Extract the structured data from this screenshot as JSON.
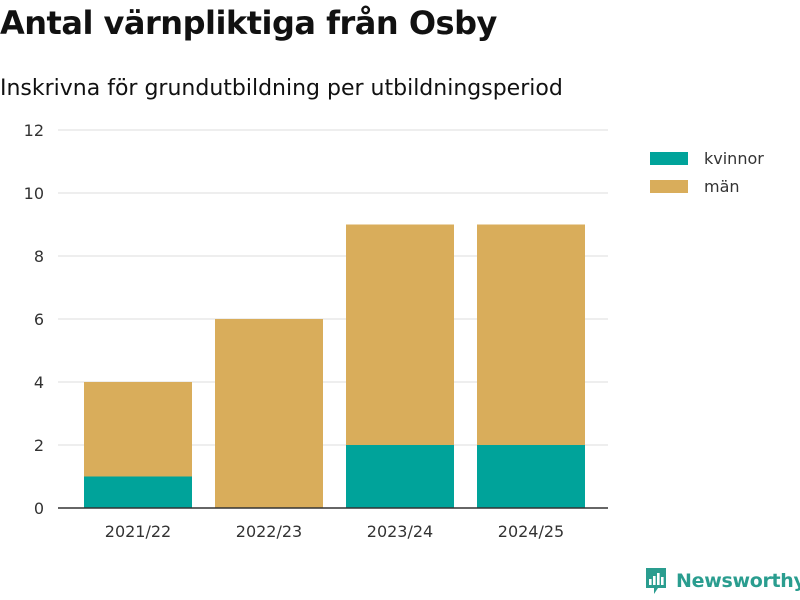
{
  "header": {
    "title": "Antal värnpliktiga från Osby",
    "subtitle": "Inskrivna för grundutbildning per utbildningsperiod"
  },
  "brand": {
    "name": "Newsworthy",
    "icon": "newsworthy-logo-icon",
    "color": "#2a9d8f"
  },
  "chart_data": {
    "type": "bar",
    "stacked": true,
    "categories": [
      "2021/22",
      "2022/23",
      "2023/24",
      "2024/25"
    ],
    "series": [
      {
        "name": "kvinnor",
        "values": [
          1,
          0,
          2,
          2
        ],
        "color": "#00a39a"
      },
      {
        "name": "män",
        "values": [
          3,
          6,
          7,
          7
        ],
        "color": "#d9ad5b"
      }
    ],
    "title": "Antal värnpliktiga från Osby",
    "subtitle": "Inskrivna för grundutbildning per utbildningsperiod",
    "xlabel": "",
    "ylabel": "",
    "ylim": [
      0,
      12
    ],
    "yticks": [
      0,
      2,
      4,
      6,
      8,
      10,
      12
    ],
    "grid": true,
    "legend": "top-right"
  }
}
